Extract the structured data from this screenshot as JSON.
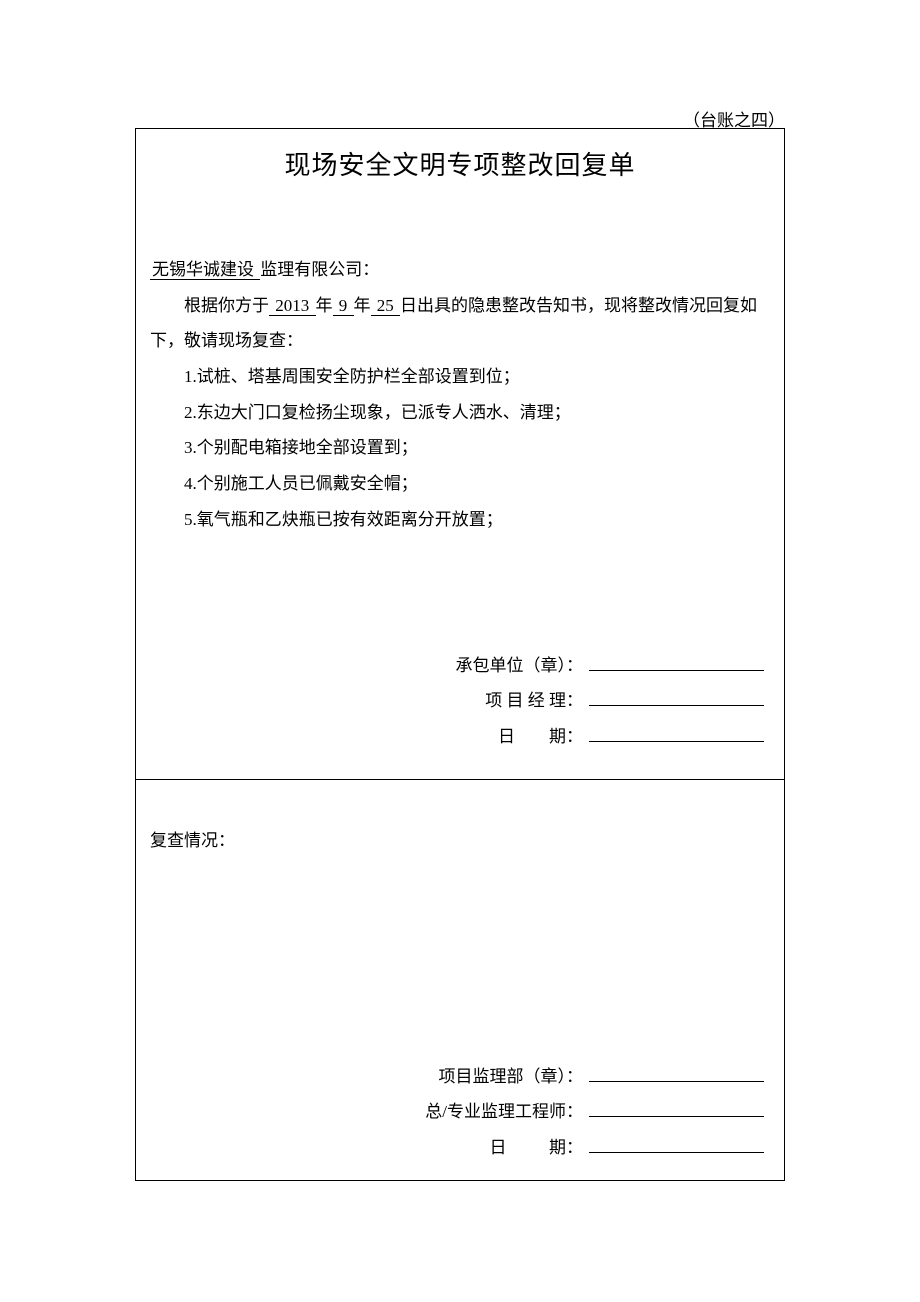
{
  "header_note": "（台账之四）",
  "title": "现场安全文明专项整改回复单",
  "addressee_underline": "  无锡华诚建设  ",
  "addressee_suffix": "监理有限公司：",
  "intro_prefix": "根据你方于",
  "year": " 2013 ",
  "year_char": "年",
  "month": " 9 ",
  "month_char": "年",
  "day": " 25 ",
  "day_char": "日出具的隐患整改告知书，现将整改情况回复如下，敬请现场复查：",
  "items": [
    "1.试桩、塔基周围安全防护栏全部设置到位；",
    "2.东边大门口复检扬尘现象，已派专人洒水、清理；",
    "3.个别配电箱接地全部设置到；",
    "4.个别施工人员已佩戴安全帽；",
    "5.氧气瓶和乙炔瓶已按有效距离分开放置；"
  ],
  "sig1": {
    "label1": "承包单位（章）：",
    "label2": "项 目 经 理：",
    "label3": "日        期："
  },
  "review_label": "复查情况：",
  "sig2": {
    "label1": "项目监理部（章）：",
    "label2": "总/专业监理工程师：",
    "label3": "日          期："
  },
  "colors": {
    "text": "#000000",
    "background": "#ffffff",
    "border": "#000000"
  },
  "typography": {
    "title_fontsize": 26,
    "body_fontsize": 17,
    "line_height": 2.1
  }
}
